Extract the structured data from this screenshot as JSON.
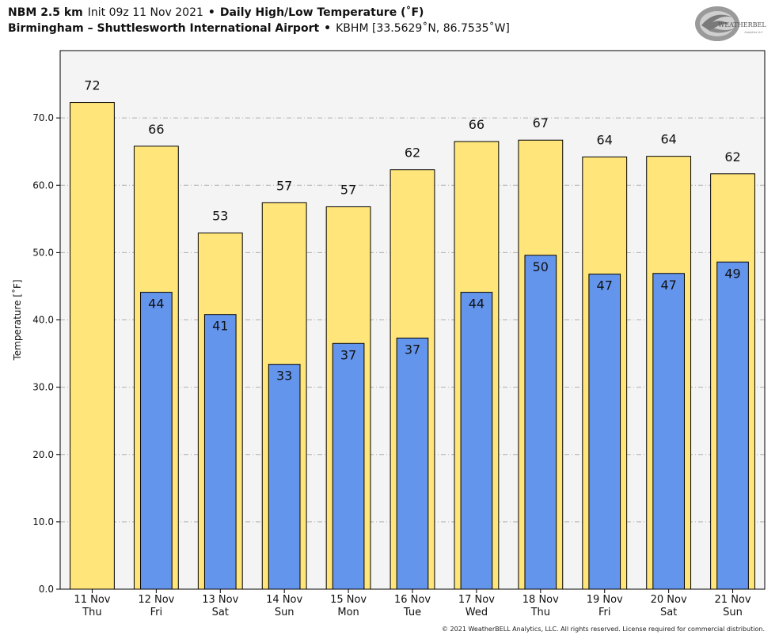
{
  "header": {
    "model": "NBM 2.5 km",
    "init": "Init 09z 11 Nov 2021",
    "bullet": "•",
    "product": "Daily High/Low Temperature (˚F)",
    "location": "Birmingham – Shuttlesworth International Airport",
    "station": "KBHM [33.5629˚N, 86.7535˚W]"
  },
  "logo": {
    "text": "WEATHERBELL",
    "subtext": "Analytics LLC"
  },
  "footer": {
    "copyright": "© 2021 WeatherBELL Analytics, LLC. All rights reserved. License required for commercial distribution."
  },
  "colors": {
    "high_bar": "#FFE57A",
    "low_bar": "#6495ED",
    "plot_bg": "#F4F4F4",
    "grid": "#B0B0B0"
  },
  "chart_data": {
    "type": "bar",
    "title": "Daily High/Low Temperature (˚F)",
    "ylabel": "Temperature [˚F]",
    "xlabel": "",
    "ylim": [
      0,
      80
    ],
    "yticks": [
      "0.0",
      "10.0",
      "20.0",
      "30.0",
      "40.0",
      "50.0",
      "60.0",
      "70.0"
    ],
    "grid": true,
    "categories": [
      [
        "11 Nov",
        "Thu"
      ],
      [
        "12 Nov",
        "Fri"
      ],
      [
        "13 Nov",
        "Sat"
      ],
      [
        "14 Nov",
        "Sun"
      ],
      [
        "15 Nov",
        "Mon"
      ],
      [
        "16 Nov",
        "Tue"
      ],
      [
        "17 Nov",
        "Wed"
      ],
      [
        "18 Nov",
        "Thu"
      ],
      [
        "19 Nov",
        "Fri"
      ],
      [
        "20 Nov",
        "Sat"
      ],
      [
        "21 Nov",
        "Sun"
      ]
    ],
    "series": [
      {
        "name": "High",
        "values": [
          72.3,
          65.8,
          52.9,
          57.4,
          56.8,
          62.3,
          66.5,
          66.7,
          64.2,
          64.3,
          61.7
        ],
        "labels": [
          "72",
          "66",
          "53",
          "57",
          "57",
          "62",
          "66",
          "67",
          "64",
          "64",
          "62"
        ]
      },
      {
        "name": "Low",
        "values": [
          null,
          44.1,
          40.8,
          33.4,
          36.5,
          37.3,
          44.1,
          49.6,
          46.8,
          46.9,
          48.6
        ],
        "labels": [
          "",
          "44",
          "41",
          "33",
          "37",
          "37",
          "44",
          "50",
          "47",
          "47",
          "49"
        ]
      }
    ]
  }
}
